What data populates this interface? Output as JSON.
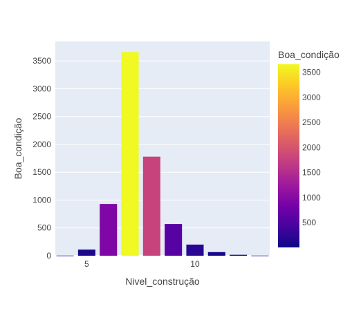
{
  "chart_data": {
    "type": "bar",
    "x": [
      4,
      5,
      6,
      7,
      8,
      9,
      10,
      11,
      12,
      13
    ],
    "values": [
      3,
      110,
      930,
      3660,
      1780,
      570,
      200,
      65,
      17,
      3
    ],
    "xlabel": "Nivel_construção",
    "ylabel": "Boa_condição",
    "xlim": [
      3.55,
      13.45
    ],
    "ylim": [
      0,
      3850
    ],
    "xticks": [
      5,
      10
    ],
    "xtick_labels": [
      "5",
      "10"
    ],
    "yticks": [
      0,
      500,
      1000,
      1500,
      2000,
      2500,
      3000,
      3500
    ],
    "ytick_labels": [
      "0",
      "500",
      "1000",
      "1500",
      "2000",
      "2500",
      "3000",
      "3500"
    ],
    "grid": true,
    "plot_background": "#E5ECF6",
    "colorscale_name": "Plasma",
    "colorscale": [
      "#0d0887",
      "#46039f",
      "#7201a8",
      "#9c179e",
      "#bd3786",
      "#d8576b",
      "#ed7953",
      "#fb9f3a",
      "#fdca26",
      "#f0f921"
    ],
    "colorbar": {
      "title": "Boa_condição",
      "range": [
        3,
        3660
      ],
      "ticks": [
        500,
        1000,
        1500,
        2000,
        2500,
        3000,
        3500
      ],
      "tick_labels": [
        "500",
        "1000",
        "1500",
        "2000",
        "2500",
        "3000",
        "3500"
      ]
    }
  }
}
